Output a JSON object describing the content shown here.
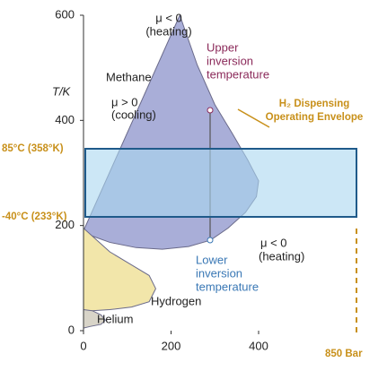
{
  "chart_data": {
    "type": "area",
    "ylabel": "T/K",
    "xlim": [
      0,
      400
    ],
    "ylim": [
      0,
      600
    ],
    "xticks": [
      0,
      200,
      400
    ],
    "yticks": [
      0,
      200,
      400,
      600
    ],
    "series": [
      {
        "name": "Methane",
        "color": "#a9aed8",
        "x": [
          220,
          260,
          300,
          340,
          375,
          400,
          395,
          370,
          330,
          290,
          240,
          180,
          120,
          60,
          20,
          0
        ],
        "values": [
          600,
          505,
          430,
          375,
          325,
          285,
          255,
          225,
          195,
          172,
          160,
          155,
          158,
          168,
          180,
          190
        ]
      },
      {
        "name": "Hydrogen",
        "color": "#f2e6aa",
        "x": [
          0,
          60,
          110,
          150,
          165,
          150,
          110,
          60,
          20,
          0
        ],
        "values": [
          195,
          150,
          125,
          105,
          80,
          55,
          45,
          40,
          38,
          36
        ]
      },
      {
        "name": "Helium",
        "color": "#d8d4c8",
        "x": [
          0,
          20,
          40,
          50,
          40,
          15,
          0
        ],
        "values": [
          40,
          38,
          30,
          20,
          12,
          8,
          5
        ]
      }
    ],
    "annotations": {
      "top_mu": "μ < 0",
      "top_heating": "(heating)",
      "upper": [
        "Upper",
        "inversion",
        "temperature"
      ],
      "mid_mu": "μ > 0",
      "mid_cooling": "(cooling)",
      "right_mu": "μ < 0",
      "right_heating": "(heating)",
      "lower": [
        "Lower",
        "inversion",
        "temperature"
      ],
      "envelope": [
        "H₂ Dispensing",
        "Operating Envelope"
      ],
      "t_high": "85°C (358°K)",
      "t_low": "-40°C (233°K)",
      "pressure": "850 Bar"
    }
  }
}
